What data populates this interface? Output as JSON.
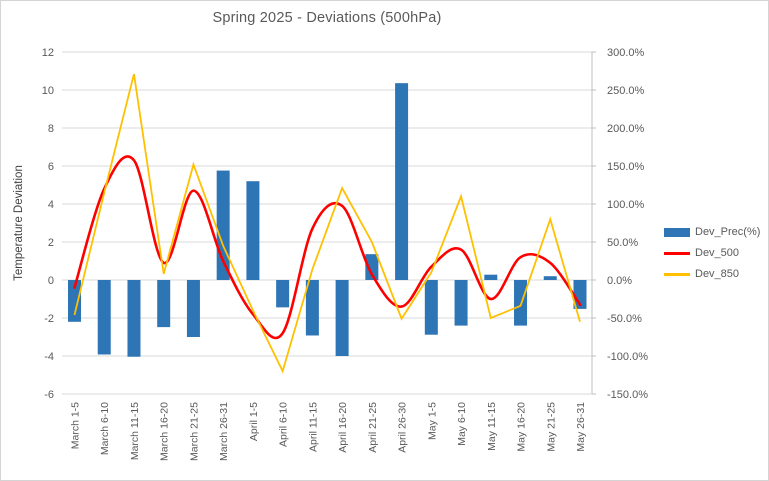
{
  "title": "Spring 2025 - Deviations (500hPa)",
  "y_axis": {
    "title": "Temperature Deviation",
    "ticks": [
      "12",
      "10",
      "8",
      "6",
      "4",
      "2",
      "0",
      "-2",
      "-4",
      "-6"
    ],
    "tick_values": [
      12,
      10,
      8,
      6,
      4,
      2,
      0,
      -2,
      -4,
      -6
    ],
    "min": -6,
    "max": 12
  },
  "y2_axis": {
    "tick_labels": [
      "300.0%",
      "250.0%",
      "200.0%",
      "150.0%",
      "100.0%",
      "50.0%",
      "0.0%",
      "-50.0%",
      "-100.0%",
      "-150.0%"
    ],
    "min_pct": -150,
    "max_pct": 300
  },
  "legend": {
    "items": [
      {
        "label": "Dev_Prec(%)",
        "type": "bar",
        "color": "#2E75B6"
      },
      {
        "label": "Dev_500",
        "type": "line",
        "color": "#FE0000"
      },
      {
        "label": "Dev_850",
        "type": "line",
        "color": "#FFC000"
      }
    ]
  },
  "chart_data": {
    "type": "combo",
    "categories": [
      "March 1-5",
      "March 6-10",
      "March 11-15",
      "March 16-20",
      "March 21-25",
      "March 26-31",
      "April 1-5",
      "April 6-10",
      "April 11-15",
      "April 16-20",
      "April 21-25",
      "April 26-30",
      "May 1-5",
      "May 6-10",
      "May 11-15",
      "May 16-20",
      "May 21-25",
      "May 26-31"
    ],
    "series": [
      {
        "name": "Dev_Prec(%)",
        "type": "bar",
        "axis": "right",
        "unit": "%",
        "color": "#2E75B6",
        "values": [
          -55,
          -98,
          -101,
          -62,
          -75,
          144,
          130,
          -36,
          -73,
          -100,
          34,
          259,
          -72,
          -60,
          7,
          -60,
          5,
          -38
        ]
      },
      {
        "name": "Dev_500",
        "type": "line",
        "smooth": true,
        "axis": "left",
        "unit": "temperature deviation",
        "color": "#FE0000",
        "values": [
          -0.4,
          4.8,
          6.3,
          0.9,
          4.7,
          1.0,
          -1.8,
          -2.8,
          2.7,
          3.9,
          0.3,
          -1.4,
          0.7,
          1.6,
          -1.0,
          1.2,
          0.9,
          -1.3
        ]
      },
      {
        "name": "Dev_850",
        "type": "line",
        "smooth": false,
        "axis": "right",
        "unit": "%",
        "color": "#FFC000",
        "values": [
          -46,
          115,
          271,
          8,
          152,
          45,
          -40,
          -120,
          14,
          121,
          50,
          -51,
          10,
          110,
          -50,
          -34,
          80,
          -55
        ]
      }
    ],
    "axis_note": "right axis percent aligns with left axis: 50% = 2 units",
    "grid": true,
    "legend_position": "right"
  },
  "colors": {
    "grid": "#D9D9D9",
    "axis_line": "#BFBFBF",
    "text": "#595959",
    "background": "#FFFFFF",
    "border": "#D4D4D4"
  }
}
